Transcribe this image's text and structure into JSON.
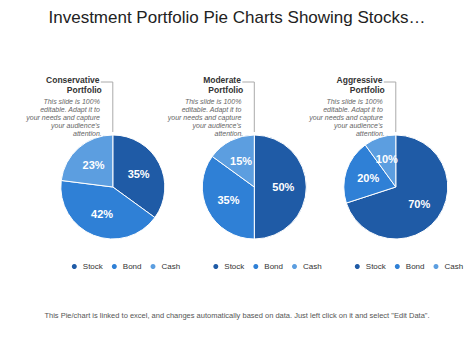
{
  "title": "Investment Portfolio Pie Charts Showing Stocks…",
  "note": "This Pie/chart is linked to excel, and changes automatically based on data. Just left click on it and select \"Edit Data\".",
  "chart_data": [
    {
      "type": "pie",
      "title": "Conservative Portfolio",
      "subtitle": "This slide is 100% editable. Adapt it to your needs and capture your audience's attention.",
      "categories": [
        "Stock",
        "Bond",
        "Cash"
      ],
      "values": [
        35,
        42,
        23
      ],
      "value_labels": [
        "35%",
        "42%",
        "23%"
      ],
      "colors": [
        "#1f5ba6",
        "#2f80d6",
        "#5c9ee0"
      ],
      "data_labels": true,
      "legend": "bottom"
    },
    {
      "type": "pie",
      "title": "Moderate Portfolio",
      "subtitle": "This slide is 100% editable. Adapt it to your needs and capture your audience's attention.",
      "categories": [
        "Stock",
        "Bond",
        "Cash"
      ],
      "values": [
        50,
        35,
        15
      ],
      "value_labels": [
        "50%",
        "35%",
        "15%"
      ],
      "colors": [
        "#1f5ba6",
        "#2f80d6",
        "#5c9ee0"
      ],
      "data_labels": true,
      "legend": "bottom"
    },
    {
      "type": "pie",
      "title": "Aggressive Portfolio",
      "subtitle": "This slide is 100% editable. Adapt it to your needs and capture your audience's attention.",
      "categories": [
        "Stock",
        "Bond",
        "Cash"
      ],
      "values": [
        70,
        20,
        10
      ],
      "value_labels": [
        "70%",
        "20%",
        "10%"
      ],
      "colors": [
        "#1f5ba6",
        "#2f80d6",
        "#5c9ee0"
      ],
      "data_labels": true,
      "legend": "bottom"
    }
  ]
}
